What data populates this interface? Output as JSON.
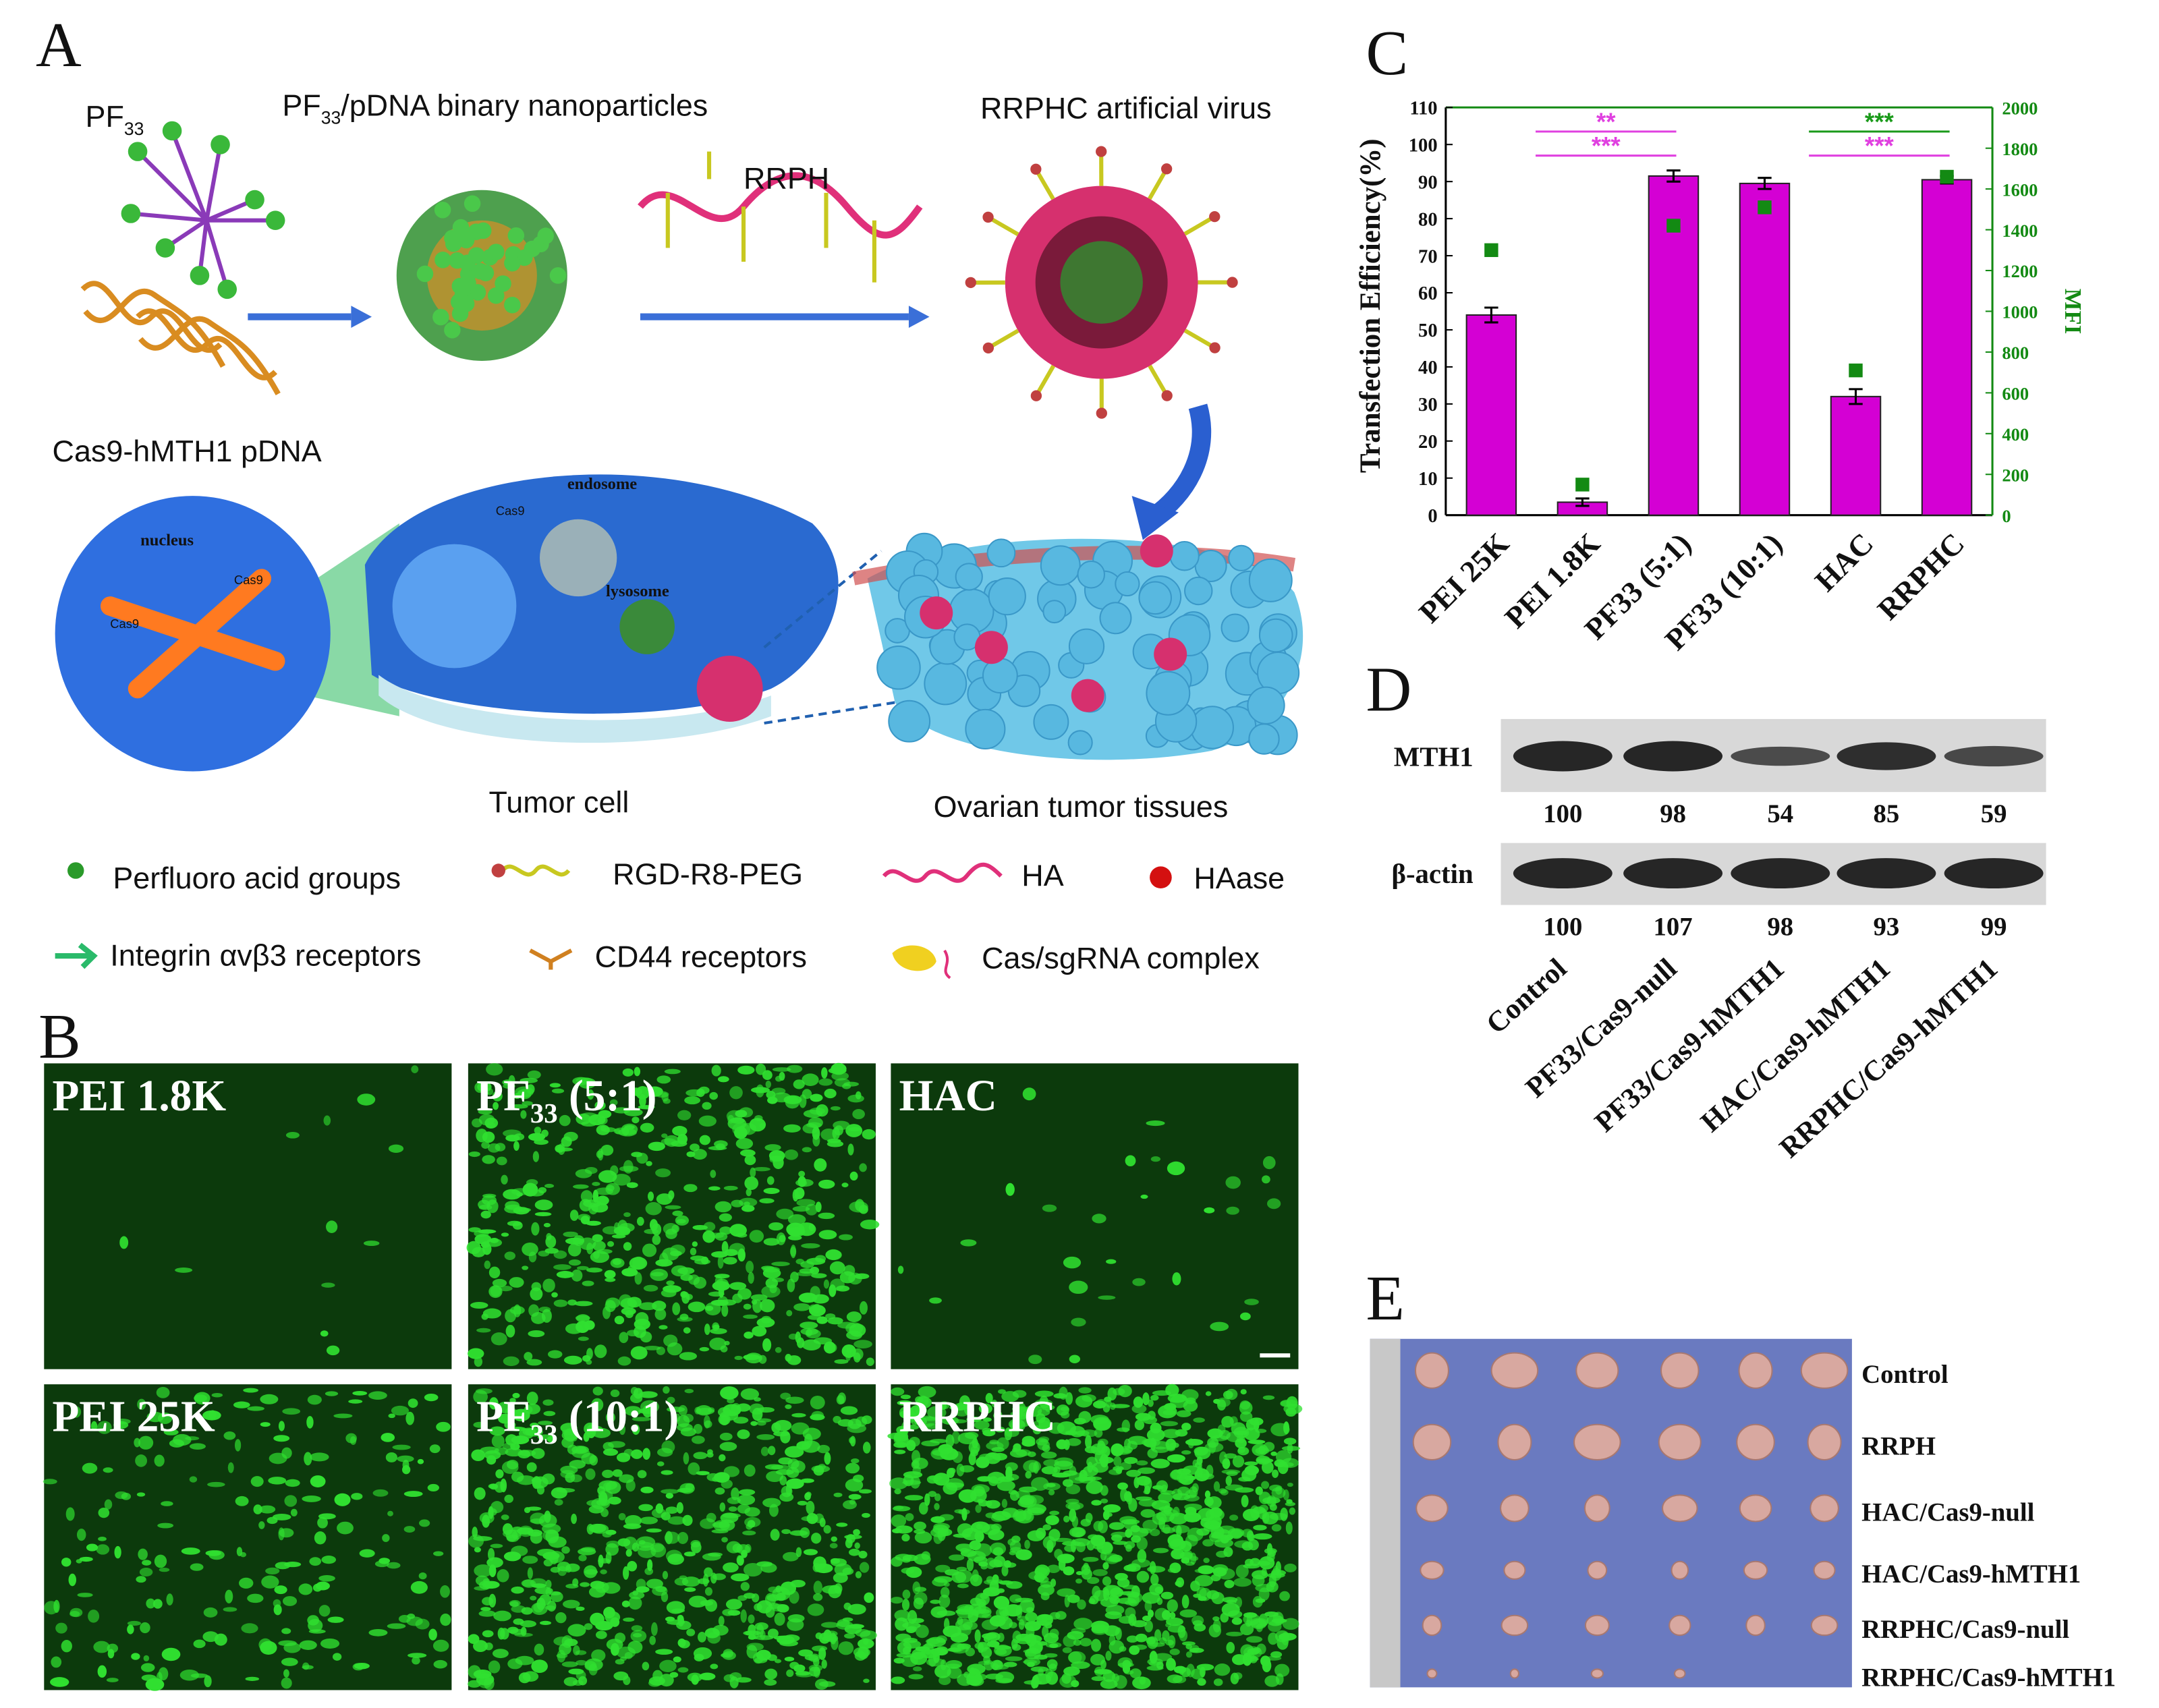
{
  "panel_labels": {
    "a": "A",
    "b": "B",
    "c": "C",
    "d": "D",
    "e": "E"
  },
  "schematic": {
    "pf33": {
      "text": "PF",
      "sub": "33"
    },
    "binary": {
      "text": "PF",
      "sub": "33",
      "tail": "/pDNA binary nanoparticles"
    },
    "rrph": "RRPH",
    "virus": "RRPHC artificial virus",
    "pdna": "Cas9-hMTH1 pDNA",
    "nucleus": "nucleus",
    "endosome": "endosome",
    "lysosome": "lysosome",
    "cas9": "Cas9",
    "tumor_cell": "Tumor cell",
    "tissues": "Ovarian tumor tissues",
    "legend": [
      "Perfluoro acid groups",
      "RGD-R8-PEG",
      "HA",
      "HAase",
      "Integrin αvβ3 receptors",
      "CD44 receptors",
      "Cas/sgRNA complex"
    ]
  },
  "micrographs": [
    {
      "text": "PEI 1.8K"
    },
    {
      "text": "PF",
      "sub": "33",
      "tail": " (5:1)"
    },
    {
      "text": "HAC"
    },
    {
      "text": "PEI 25K"
    },
    {
      "text": "PF",
      "sub": "33",
      "tail": " (10:1)"
    },
    {
      "text": "RRPHC"
    }
  ],
  "chart_data": {
    "type": "bar",
    "ylabel": "Transfection Efficiency(%)",
    "y2label": "MFI",
    "categories": [
      "PEI 25K",
      "PEI 1.8K",
      "PF33 (5:1)",
      "PF33 (10:1)",
      "HAC",
      "RRPHC"
    ],
    "series": [
      {
        "type": "bar",
        "color": "#d400d4",
        "values": [
          54,
          3.5,
          91.5,
          89.5,
          32,
          90.5
        ],
        "errors": [
          2,
          1,
          1.5,
          1.5,
          2,
          1
        ]
      },
      {
        "type": "scatter",
        "color": "#138a13",
        "axis": "y2",
        "values": [
          1300,
          150,
          1420,
          1510,
          710,
          1660
        ]
      }
    ],
    "ylim": [
      0,
      110
    ],
    "yticks": [
      0,
      10,
      20,
      30,
      40,
      50,
      60,
      70,
      80,
      90,
      100,
      110
    ],
    "y2lim": [
      0,
      2000
    ],
    "y2ticks": [
      0,
      200,
      400,
      600,
      800,
      1000,
      1200,
      1400,
      1600,
      1800,
      2000
    ],
    "annotations": [
      {
        "text": "**",
        "color": "#e040e0",
        "pair": [
          1,
          2
        ],
        "y": 103.5
      },
      {
        "text": "***",
        "color": "#e040e0",
        "pair": [
          1,
          2
        ],
        "y": 97
      },
      {
        "text": "***",
        "color": "#1a9a1a",
        "pair": [
          4,
          5
        ],
        "y": 103.5
      },
      {
        "text": "***",
        "color": "#e040e0",
        "pair": [
          4,
          5
        ],
        "y": 97
      }
    ]
  },
  "western": {
    "rows": [
      {
        "name": "MTH1",
        "values": [
          100,
          98,
          54,
          85,
          59
        ]
      },
      {
        "name": "β-actin",
        "values": [
          100,
          107,
          98,
          93,
          99
        ]
      }
    ],
    "lanes": [
      "Control",
      "PF33/Cas9-null",
      "PF33/Cas9-hMTH1",
      "HAC/Cas9-hMTH1",
      "RRPHC/Cas9-hMTH1"
    ]
  },
  "tumors": {
    "groups": [
      "Control",
      "RRPH",
      "HAC/Cas9-null",
      "HAC/Cas9-hMTH1",
      "RRPHC/Cas9-null",
      "RRPHC/Cas9-hMTH1"
    ]
  }
}
